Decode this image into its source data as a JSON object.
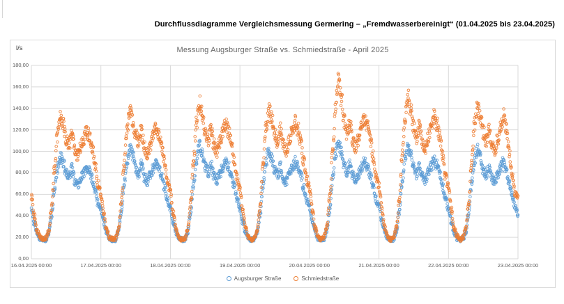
{
  "header": {
    "title": "Durchflussdiagramme Vergleichsmessung Germering – „Fremdwasserbereinigt“ (01.04.2025 bis 23.04.2025)"
  },
  "chart_data": {
    "type": "scatter",
    "title": "Messung Augsburger Straße vs. Schmiedstraße - April 2025",
    "y_axis": {
      "unit_label": "l/s",
      "min": 0,
      "max": 180,
      "tick_step": 20,
      "tick_labels": [
        "0,00",
        "20,00",
        "40,00",
        "60,00",
        "80,00",
        "100,00",
        "120,00",
        "140,00",
        "160,00",
        "180,00"
      ]
    },
    "x_axis": {
      "days": 7,
      "hours_total": 168,
      "tick_labels": [
        "16.04.2025 00:00",
        "17.04.2025 00:00",
        "18.04.2025 00:00",
        "19.04.2025 00:00",
        "20.04.2025 00:00",
        "21.04.2025 00:00",
        "22.04.2025 00:00",
        "23.04.2025 00:00"
      ]
    },
    "grid": true,
    "legend_position": "bottom",
    "marker": "open-circle",
    "colors": {
      "gridline": "#d9d9d9",
      "axis_text": "#595959",
      "title_text": "#666666"
    },
    "series": [
      {
        "name": "Augsburger Straße",
        "color": "#5B9BD5",
        "sampling": "hourly_estimates_l_per_s",
        "values": [
          45,
          33,
          24,
          19,
          18,
          18,
          24,
          40,
          65,
          84,
          95,
          89,
          80,
          76,
          84,
          73,
          69,
          75,
          80,
          84,
          81,
          74,
          64,
          52,
          46,
          34,
          24,
          19,
          18,
          18,
          25,
          42,
          68,
          90,
          104,
          96,
          84,
          79,
          87,
          76,
          72,
          78,
          83,
          88,
          84,
          77,
          66,
          54,
          47,
          34,
          24,
          19,
          18,
          18,
          25,
          43,
          70,
          93,
          106,
          98,
          86,
          80,
          88,
          77,
          73,
          79,
          84,
          90,
          86,
          78,
          67,
          55,
          47,
          34,
          24,
          19,
          18,
          18,
          25,
          42,
          68,
          90,
          100,
          94,
          83,
          78,
          86,
          75,
          72,
          78,
          84,
          90,
          86,
          78,
          66,
          54,
          48,
          35,
          25,
          19,
          18,
          18,
          26,
          45,
          74,
          98,
          110,
          100,
          87,
          80,
          88,
          77,
          73,
          79,
          85,
          90,
          86,
          78,
          67,
          55,
          48,
          35,
          25,
          19,
          18,
          18,
          26,
          44,
          72,
          95,
          105,
          97,
          85,
          79,
          87,
          76,
          73,
          80,
          86,
          92,
          87,
          79,
          67,
          55,
          47,
          34,
          24,
          19,
          18,
          18,
          25,
          43,
          70,
          92,
          102,
          95,
          83,
          78,
          86,
          75,
          71,
          78,
          85,
          90,
          82,
          70,
          58,
          48,
          42
        ]
      },
      {
        "name": "Schmiedstraße",
        "color": "#ED7D31",
        "sampling": "hourly_estimates_l_per_s",
        "values": [
          58,
          40,
          26,
          20,
          18,
          19,
          26,
          48,
          85,
          115,
          132,
          124,
          112,
          106,
          118,
          102,
          96,
          104,
          112,
          120,
          115,
          105,
          88,
          70,
          60,
          42,
          27,
          20,
          18,
          19,
          27,
          50,
          88,
          120,
          137,
          128,
          115,
          108,
          120,
          104,
          98,
          106,
          114,
          122,
          117,
          106,
          90,
          72,
          62,
          43,
          27,
          20,
          18,
          19,
          28,
          52,
          92,
          126,
          146,
          134,
          118,
          110,
          122,
          106,
          100,
          108,
          116,
          125,
          119,
          108,
          92,
          74,
          64,
          44,
          28,
          20,
          18,
          19,
          27,
          50,
          90,
          122,
          138,
          130,
          116,
          109,
          121,
          105,
          99,
          109,
          118,
          128,
          121,
          109,
          92,
          74,
          66,
          46,
          28,
          21,
          18,
          20,
          30,
          56,
          100,
          140,
          166,
          150,
          128,
          116,
          126,
          110,
          104,
          112,
          122,
          130,
          124,
          112,
          95,
          76,
          68,
          47,
          29,
          21,
          18,
          20,
          29,
          54,
          96,
          132,
          152,
          140,
          122,
          112,
          124,
          108,
          102,
          112,
          124,
          132,
          126,
          114,
          96,
          77,
          66,
          46,
          28,
          21,
          18,
          20,
          28,
          52,
          92,
          126,
          142,
          132,
          118,
          110,
          122,
          106,
          101,
          111,
          122,
          133,
          120,
          100,
          78,
          62,
          55
        ]
      }
    ]
  }
}
